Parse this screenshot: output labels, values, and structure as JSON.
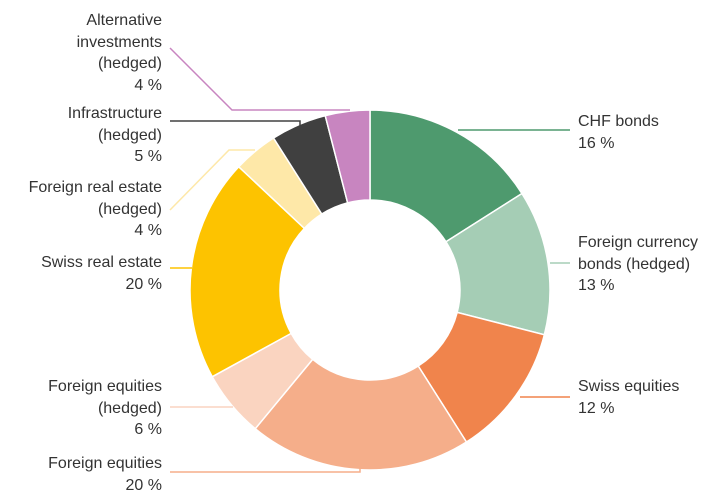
{
  "chart_data": {
    "type": "donut",
    "categories": [
      "CHF bonds",
      "Foreign currency\nbonds (hedged)",
      "Swiss equities",
      "Foreign equities",
      "Foreign equities\n(hedged)",
      "Swiss real estate",
      "Foreign real estate\n(hedged)",
      "Infrastructure\n(hedged)",
      "Alternative\ninvestments\n(hedged)"
    ],
    "values": [
      16,
      13,
      12,
      20,
      6,
      20,
      4,
      5,
      4
    ],
    "value_labels": [
      "16 %",
      "13 %",
      "12 %",
      "20 %",
      "6 %",
      "20 %",
      "4 %",
      "5 %",
      "4 %"
    ],
    "colors": [
      "#4e9a6e",
      "#a5cdb5",
      "#f0844c",
      "#f5ae8a",
      "#fad4c0",
      "#fdc300",
      "#fee8a8",
      "#404040",
      "#c885c0"
    ]
  }
}
